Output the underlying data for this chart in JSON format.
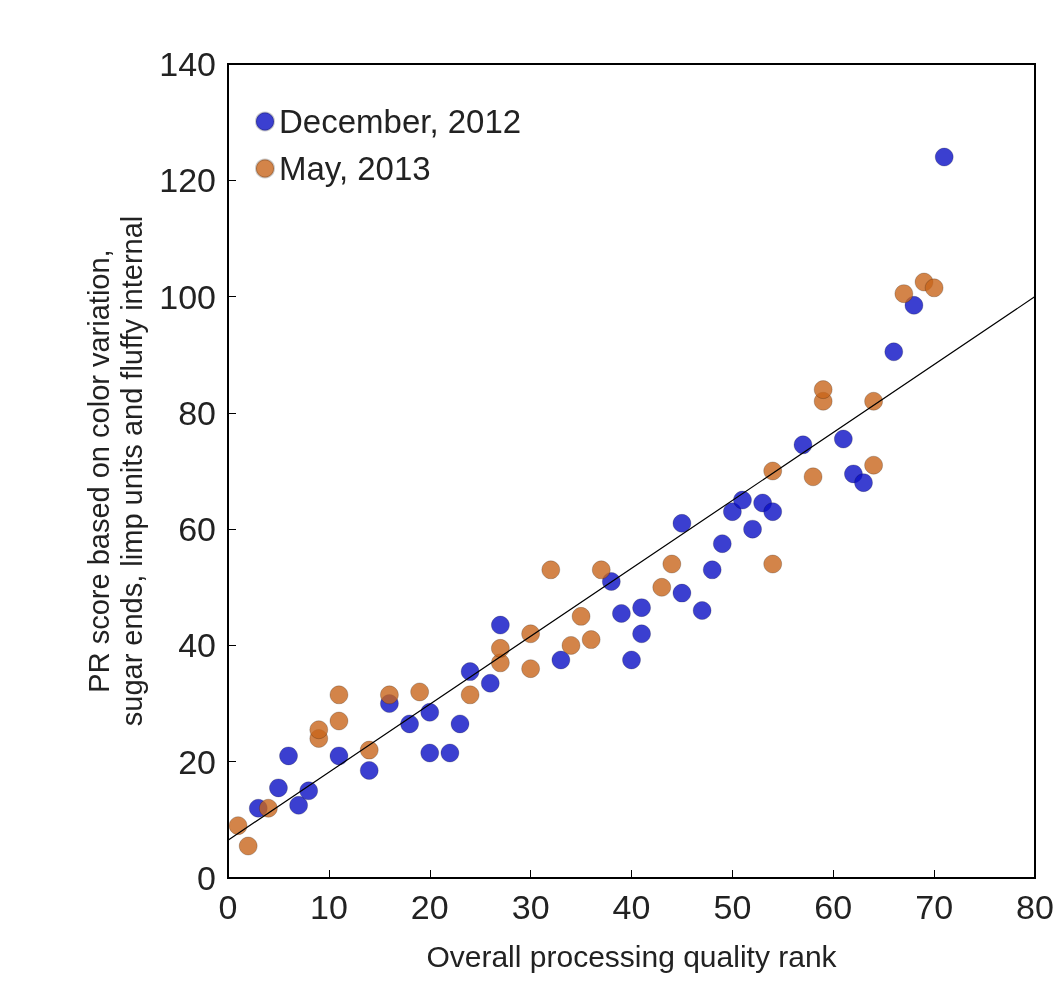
{
  "chart_data": {
    "type": "scatter",
    "xlabel": "Overall processing quality rank",
    "ylabel": "PR score based on color variation,\nsugar ends, limp units and fluffy internal",
    "xlim": [
      0,
      80
    ],
    "xticks": [
      0,
      10,
      20,
      30,
      40,
      50,
      60,
      70,
      80
    ],
    "ylim": [
      0,
      140
    ],
    "yticks": [
      0,
      20,
      40,
      60,
      80,
      100,
      120,
      140
    ],
    "grid": false,
    "legend": "top left",
    "marker": "circle",
    "series": [
      {
        "name": "December, 2012",
        "color": "#0a0fc4",
        "x": [
          3,
          5,
          6,
          7,
          8,
          11,
          14,
          16,
          18,
          20,
          20,
          22,
          23,
          24,
          26,
          27,
          33,
          38,
          39,
          40,
          41,
          41,
          45,
          45,
          47,
          48,
          49,
          50,
          51,
          52,
          53,
          54,
          57,
          61,
          62,
          63,
          66,
          68,
          71
        ],
        "values": [
          12,
          15.5,
          21,
          12.5,
          15,
          21,
          18.5,
          30,
          26.5,
          28.5,
          21.5,
          21.5,
          26.5,
          35.5,
          33.5,
          43.5,
          37.5,
          51,
          45.5,
          37.5,
          46.5,
          42,
          61,
          49,
          46,
          53,
          57.5,
          63,
          65,
          60,
          64.5,
          63,
          74.5,
          75.5,
          69.5,
          68,
          90.5,
          98.5,
          124
        ]
      },
      {
        "name": "May, 2013",
        "color": "#c8651c",
        "x": [
          1,
          2,
          4,
          9,
          9,
          11,
          11,
          14,
          16,
          19,
          24,
          27,
          27,
          30,
          30,
          32,
          34,
          35,
          36,
          37,
          43,
          44,
          54,
          54,
          58,
          59,
          59,
          64,
          64,
          67,
          69,
          70
        ],
        "values": [
          9,
          5.5,
          12,
          24,
          25.5,
          27,
          31.5,
          22,
          31.5,
          32,
          31.5,
          37,
          39.5,
          36,
          42,
          53,
          40,
          45,
          41,
          53,
          50,
          54,
          54,
          70,
          69,
          82,
          84,
          71,
          82,
          100.5,
          102.5,
          101.5
        ]
      },
      {
        "type": "line",
        "color": "#000000",
        "marker": "none",
        "x": [
          0,
          80
        ],
        "values": [
          6.5,
          100
        ]
      }
    ]
  }
}
